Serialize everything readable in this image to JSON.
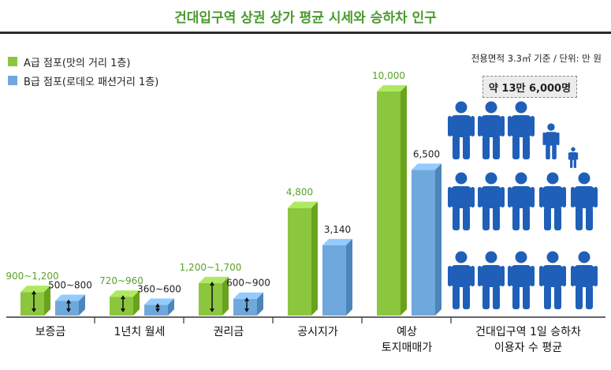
{
  "title": "건대입구역 상권 상가 평균 시세와 승하차 인구",
  "unit_note": "전용면적 3.3㎡ 기준 / 단위: 만 원",
  "colors": {
    "a_bar": "#8cc63f",
    "b_bar": "#6fa8dc",
    "person": "#1f5fb8",
    "title": "#4a9a2e"
  },
  "chart_data": {
    "type": "bar",
    "categories": [
      "보증금",
      "1년치 월세",
      "권리금",
      "공시지가",
      "예상\n토지매매가"
    ],
    "series": [
      {
        "name": "A급 점포(맛의 거리 1층)",
        "values": [
          1050,
          840,
          1450,
          4800,
          10000
        ],
        "labels": [
          "900~1,200",
          "720~960",
          "1,200~1,700",
          "4,800",
          "10,000"
        ]
      },
      {
        "name": "B급 점포(로데오 패션거리 1층)",
        "values": [
          650,
          480,
          750,
          3140,
          6500
        ],
        "labels": [
          "500~800",
          "360~600",
          "600~900",
          "3,140",
          "6,500"
        ]
      }
    ],
    "range_bars": [
      true,
      true,
      true,
      false,
      false
    ],
    "ylim": [
      0,
      10000
    ],
    "legend": "top-left"
  },
  "passengers": {
    "label": "약 13만 6,000명",
    "category": "건대입구역 1일 승하차\n이용자 수 평균",
    "icon": "person-icon"
  }
}
